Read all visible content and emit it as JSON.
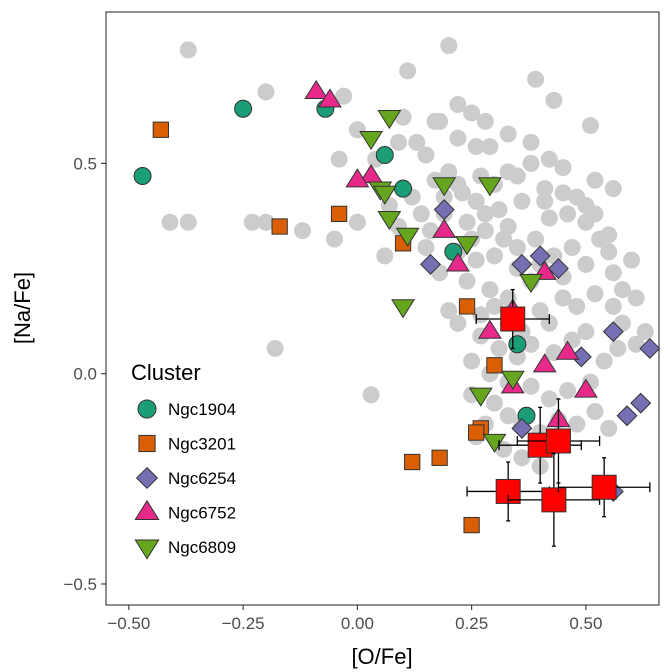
{
  "chart_data": {
    "type": "scatter",
    "xlabel": "[O/Fe]",
    "ylabel": "[Na/Fe]",
    "xlim": [
      -0.55,
      0.66
    ],
    "ylim": [
      -0.55,
      0.86
    ],
    "x_ticks": [
      -0.5,
      -0.25,
      0.0,
      0.25,
      0.5
    ],
    "x_tick_labels": [
      "−0.50",
      "−0.25",
      "0.00",
      "0.25",
      "0.50"
    ],
    "y_ticks": [
      -0.5,
      0.0,
      0.5
    ],
    "y_tick_labels": [
      "−0.5",
      "0.0",
      "0.5"
    ],
    "grid": false,
    "legend_title": "Cluster",
    "legend_position": "bottom-left",
    "background_points": {
      "color": "#cccccc",
      "points": [
        [
          -0.37,
          0.77
        ],
        [
          -0.2,
          0.67
        ],
        [
          0.22,
          0.64
        ],
        [
          0.25,
          0.62
        ],
        [
          0.17,
          0.6
        ],
        [
          0.1,
          0.61
        ],
        [
          0.28,
          0.6
        ],
        [
          0.29,
          0.54
        ],
        [
          0.22,
          0.56
        ],
        [
          0.13,
          0.55
        ],
        [
          0.0,
          0.58
        ],
        [
          -0.03,
          0.66
        ],
        [
          0.15,
          0.52
        ],
        [
          0.2,
          0.48
        ],
        [
          0.22,
          0.45
        ],
        [
          0.27,
          0.47
        ],
        [
          0.33,
          0.48
        ],
        [
          0.35,
          0.47
        ],
        [
          0.3,
          0.45
        ],
        [
          0.38,
          0.5
        ],
        [
          0.41,
          0.44
        ],
        [
          0.45,
          0.43
        ],
        [
          0.48,
          0.42
        ],
        [
          0.5,
          0.4
        ],
        [
          0.52,
          0.38
        ],
        [
          0.46,
          0.38
        ],
        [
          0.41,
          0.41
        ],
        [
          0.36,
          0.41
        ],
        [
          0.31,
          0.39
        ],
        [
          0.26,
          0.41
        ],
        [
          0.23,
          0.43
        ],
        [
          0.19,
          0.42
        ],
        [
          0.17,
          0.46
        ],
        [
          0.24,
          0.36
        ],
        [
          0.28,
          0.34
        ],
        [
          0.33,
          0.35
        ],
        [
          0.39,
          0.32
        ],
        [
          0.42,
          0.37
        ],
        [
          0.47,
          0.3
        ],
        [
          0.53,
          0.32
        ],
        [
          0.55,
          0.33
        ],
        [
          0.43,
          0.28
        ],
        [
          0.38,
          0.22
        ],
        [
          0.35,
          0.25
        ],
        [
          0.3,
          0.28
        ],
        [
          0.26,
          0.27
        ],
        [
          0.22,
          0.29
        ],
        [
          0.29,
          0.2
        ],
        [
          0.33,
          0.18
        ],
        [
          0.4,
          0.15
        ],
        [
          0.45,
          0.18
        ],
        [
          0.48,
          0.16
        ],
        [
          0.52,
          0.19
        ],
        [
          0.56,
          0.16
        ],
        [
          0.61,
          0.18
        ],
        [
          0.58,
          0.12
        ],
        [
          0.5,
          0.1
        ],
        [
          0.47,
          0.08
        ],
        [
          0.43,
          0.05
        ],
        [
          0.38,
          0.07
        ],
        [
          0.35,
          0.04
        ],
        [
          0.31,
          0.06
        ],
        [
          0.27,
          0.09
        ],
        [
          0.25,
          0.03
        ],
        [
          0.29,
          0.0
        ],
        [
          0.33,
          -0.02
        ],
        [
          0.38,
          -0.03
        ],
        [
          0.42,
          -0.06
        ],
        [
          0.46,
          -0.04
        ],
        [
          0.51,
          -0.02
        ],
        [
          0.54,
          0.03
        ],
        [
          0.57,
          0.06
        ],
        [
          0.61,
          0.07
        ],
        [
          0.63,
          0.1
        ],
        [
          0.3,
          -0.07
        ],
        [
          0.33,
          -0.1
        ],
        [
          0.36,
          -0.12
        ],
        [
          0.4,
          -0.14
        ],
        [
          0.44,
          -0.11
        ],
        [
          0.48,
          -0.12
        ],
        [
          0.52,
          -0.09
        ],
        [
          0.55,
          -0.13
        ],
        [
          0.32,
          -0.18
        ],
        [
          0.36,
          -0.2
        ],
        [
          0.4,
          -0.22
        ],
        [
          0.28,
          -0.12
        ],
        [
          0.25,
          -0.05
        ],
        [
          0.22,
          0.12
        ],
        [
          0.2,
          0.15
        ],
        [
          0.24,
          0.22
        ],
        [
          0.18,
          0.24
        ],
        [
          0.15,
          0.3
        ],
        [
          -0.05,
          0.32
        ],
        [
          0.0,
          0.36
        ],
        [
          0.06,
          0.28
        ],
        [
          0.09,
          0.35
        ],
        [
          -0.12,
          0.34
        ],
        [
          -0.2,
          0.36
        ],
        [
          -0.23,
          0.36
        ],
        [
          -0.37,
          0.36
        ],
        [
          -0.41,
          0.36
        ],
        [
          0.04,
          0.51
        ],
        [
          -0.04,
          0.51
        ],
        [
          0.26,
          0.54
        ],
        [
          0.33,
          0.57
        ],
        [
          0.38,
          0.55
        ],
        [
          0.42,
          0.51
        ],
        [
          0.45,
          0.49
        ],
        [
          0.52,
          0.46
        ],
        [
          0.56,
          0.44
        ],
        [
          0.09,
          0.55
        ],
        [
          0.07,
          0.4
        ],
        [
          0.12,
          0.42
        ],
        [
          0.14,
          0.38
        ],
        [
          0.16,
          0.34
        ],
        [
          0.19,
          0.38
        ],
        [
          0.25,
          0.32
        ],
        [
          0.4,
          0.26
        ],
        [
          0.45,
          0.23
        ],
        [
          0.5,
          0.26
        ],
        [
          0.33,
          0.12
        ],
        [
          0.36,
          0.1
        ],
        [
          0.42,
          0.12
        ],
        [
          0.27,
          0.14
        ],
        [
          0.3,
          0.16
        ],
        [
          0.58,
          0.2
        ],
        [
          0.56,
          0.24
        ],
        [
          0.5,
          0.36
        ],
        [
          0.55,
          0.29
        ],
        [
          0.6,
          0.27
        ],
        [
          0.35,
          0.3
        ],
        [
          0.32,
          0.32
        ],
        [
          0.28,
          0.38
        ],
        [
          0.2,
          0.78
        ],
        [
          0.11,
          0.72
        ],
        [
          0.18,
          0.6
        ],
        [
          0.39,
          0.7
        ],
        [
          0.43,
          0.65
        ],
        [
          0.51,
          0.59
        ],
        [
          0.03,
          -0.05
        ],
        [
          0.26,
          -0.15
        ],
        [
          -0.18,
          0.06
        ]
      ]
    },
    "series": [
      {
        "name": "Ngc1904",
        "shape": "circle",
        "color": "#1b9e77",
        "points": [
          [
            -0.47,
            0.47
          ],
          [
            -0.25,
            0.63
          ],
          [
            -0.07,
            0.63
          ],
          [
            0.06,
            0.52
          ],
          [
            0.1,
            0.44
          ],
          [
            0.21,
            0.29
          ],
          [
            0.35,
            0.07
          ],
          [
            0.37,
            -0.1
          ]
        ]
      },
      {
        "name": "Ngc3201",
        "shape": "square",
        "color": "#d95f02",
        "points": [
          [
            -0.43,
            0.58
          ],
          [
            -0.17,
            0.35
          ],
          [
            -0.04,
            0.38
          ],
          [
            0.1,
            0.31
          ],
          [
            0.12,
            -0.21
          ],
          [
            0.18,
            -0.2
          ],
          [
            0.24,
            0.16
          ],
          [
            0.25,
            -0.36
          ],
          [
            0.27,
            -0.13
          ],
          [
            0.26,
            -0.14
          ],
          [
            0.3,
            0.02
          ]
        ]
      },
      {
        "name": "Ngc6254",
        "shape": "diamond",
        "color": "#7570b3",
        "points": [
          [
            0.19,
            0.39
          ],
          [
            0.16,
            0.26
          ],
          [
            0.36,
            0.26
          ],
          [
            0.4,
            0.28
          ],
          [
            0.44,
            0.25
          ],
          [
            0.49,
            0.04
          ],
          [
            0.56,
            0.1
          ],
          [
            0.64,
            0.06
          ],
          [
            0.62,
            -0.07
          ],
          [
            0.59,
            -0.1
          ],
          [
            0.56,
            -0.28
          ],
          [
            0.36,
            -0.13
          ]
        ]
      },
      {
        "name": "Ngc6752",
        "shape": "triangle",
        "color": "#e7298a",
        "points": [
          [
            -0.09,
            0.67
          ],
          [
            -0.06,
            0.65
          ],
          [
            0.03,
            0.47
          ],
          [
            0.0,
            0.46
          ],
          [
            0.19,
            0.34
          ],
          [
            0.22,
            0.26
          ],
          [
            0.29,
            0.1
          ],
          [
            0.34,
            0.15
          ],
          [
            0.41,
            0.24
          ],
          [
            0.41,
            0.02
          ],
          [
            0.44,
            -0.11
          ],
          [
            0.46,
            0.05
          ],
          [
            0.5,
            -0.04
          ],
          [
            0.34,
            -0.03
          ]
        ]
      },
      {
        "name": "Ngc6809",
        "shape": "triangle-down",
        "color": "#66a61e",
        "points": [
          [
            0.03,
            0.56
          ],
          [
            0.07,
            0.61
          ],
          [
            0.05,
            0.44
          ],
          [
            0.06,
            0.43
          ],
          [
            0.07,
            0.37
          ],
          [
            0.11,
            0.33
          ],
          [
            0.19,
            0.45
          ],
          [
            0.24,
            0.31
          ],
          [
            0.29,
            0.45
          ],
          [
            0.1,
            0.16
          ],
          [
            0.38,
            0.22
          ],
          [
            0.34,
            -0.01
          ],
          [
            0.27,
            -0.05
          ],
          [
            0.3,
            -0.16
          ]
        ]
      }
    ],
    "highlight": {
      "color": "#ff0000",
      "points": [
        {
          "x": 0.34,
          "y": 0.13,
          "xerr": 0.08,
          "yerr": 0.07
        },
        {
          "x": 0.4,
          "y": -0.17,
          "xerr": 0.09,
          "yerr": 0.09
        },
        {
          "x": 0.44,
          "y": -0.16,
          "xerr": 0.09,
          "yerr": 0.1
        },
        {
          "x": 0.33,
          "y": -0.28,
          "xerr": 0.09,
          "yerr": 0.07
        },
        {
          "x": 0.43,
          "y": -0.3,
          "xerr": 0.1,
          "yerr": 0.11
        },
        {
          "x": 0.54,
          "y": -0.27,
          "xerr": 0.1,
          "yerr": 0.07
        }
      ]
    }
  }
}
